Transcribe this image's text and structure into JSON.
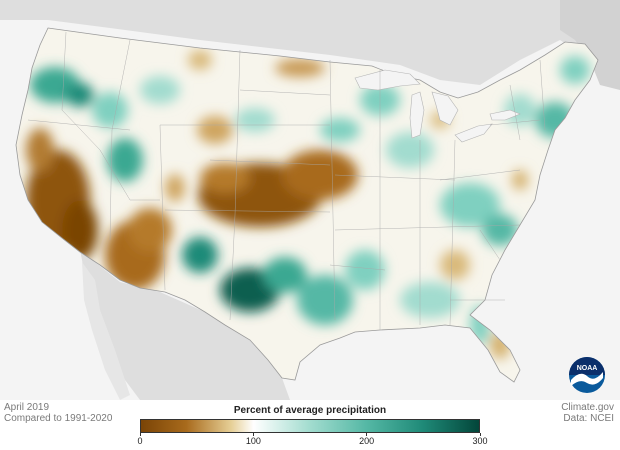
{
  "legend": {
    "title": "Percent of average precipitation",
    "ticks": [
      "0",
      "100",
      "200",
      "300"
    ],
    "range": [
      0,
      300
    ],
    "gradient_stops": [
      {
        "value": 0,
        "color": "#7a4406"
      },
      {
        "value": 40,
        "color": "#a86a1c"
      },
      {
        "value": 80,
        "color": "#e6cf96"
      },
      {
        "value": 100,
        "color": "#ffffff"
      },
      {
        "value": 150,
        "color": "#a2dccf"
      },
      {
        "value": 200,
        "color": "#55b8a5"
      },
      {
        "value": 250,
        "color": "#1f8a78"
      },
      {
        "value": 300,
        "color": "#03463a"
      }
    ]
  },
  "meta": {
    "date": "April 2019",
    "baseline": "Compared to 1991-2020",
    "source": "Climate.gov",
    "data_source": "Data: NCEI"
  },
  "logo": {
    "text": "NOAA",
    "icon": "noaa-logo-icon"
  },
  "colors": {
    "background": "#f4f4f4",
    "non_us_land": "#dedede",
    "dry": "#9a5c12",
    "wet": "#0f6b5b",
    "normal": "#ffffff",
    "noaa_blue": "#0a5a9c"
  }
}
